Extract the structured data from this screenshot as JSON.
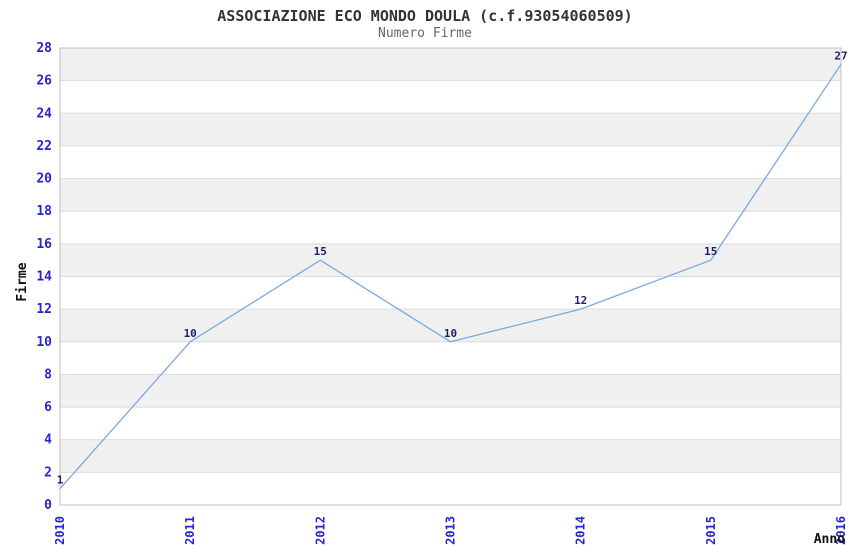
{
  "title": "ASSOCIAZIONE ECO MONDO DOULA (c.f.93054060509)",
  "subtitle": "Numero Firme",
  "chart_data": {
    "type": "line",
    "x": [
      "2010",
      "2011",
      "2012",
      "2013",
      "2014",
      "2015",
      "2016"
    ],
    "values": [
      1,
      10,
      15,
      10,
      12,
      15,
      27
    ],
    "series_name": "Numero Firme",
    "title": "ASSOCIAZIONE ECO MONDO DOULA (c.f.93054060509)",
    "subtitle": "Numero Firme",
    "xlabel": "Anno",
    "ylabel": "Firme",
    "ylim": [
      0,
      28
    ],
    "ytick_step": 2,
    "grid": "horizontal-bands-alternating",
    "legend": "none",
    "data_labels_shown": true,
    "colors": {
      "line": "#7aa9de",
      "tick_label": "#2626d0",
      "data_label": "#1f1f66",
      "band": "#f0f0f0",
      "grid_line": "#dcdcdc",
      "plot_border": "#c0c0c0",
      "title": "#333333",
      "subtitle": "#666666",
      "axis_label": "#111111"
    }
  }
}
